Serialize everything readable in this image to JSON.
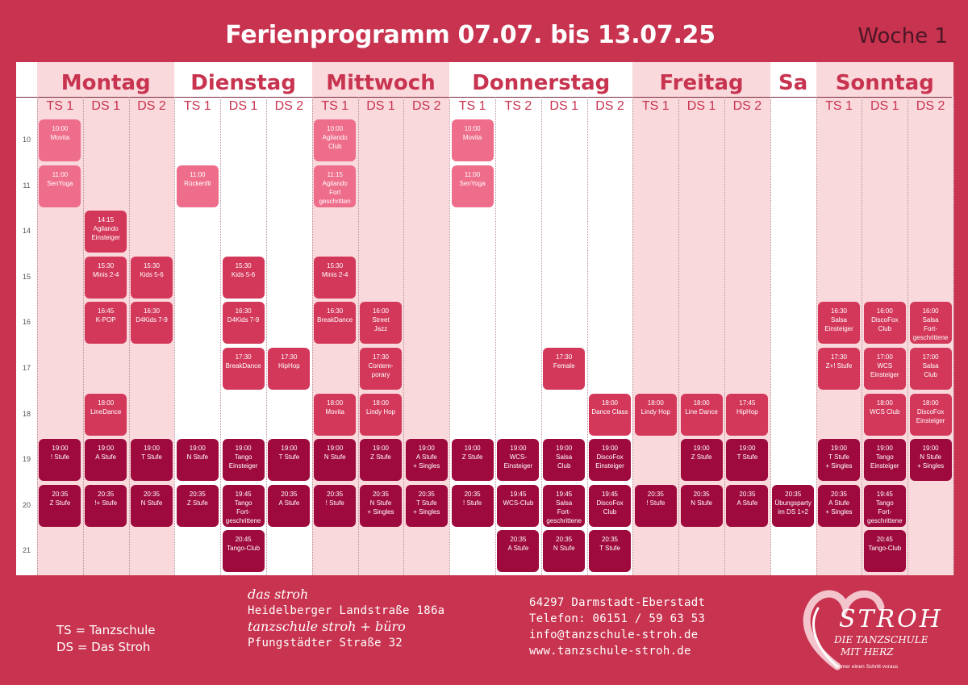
{
  "title": "Ferienprogramm 07.07. bis 13.07.25",
  "week": "Woche 1",
  "days": [
    {
      "name": "Montag",
      "cols": [
        "TS 1",
        "DS 1",
        "DS 2"
      ],
      "shade": true
    },
    {
      "name": "Dienstag",
      "cols": [
        "TS 1",
        "DS 1",
        "DS 2"
      ],
      "shade": false
    },
    {
      "name": "Mittwoch",
      "cols": [
        "TS 1",
        "DS 1",
        "DS 2"
      ],
      "shade": true
    },
    {
      "name": "Donnerstag",
      "cols": [
        "TS 1",
        "TS 2",
        "DS 1",
        "DS 2"
      ],
      "shade": false
    },
    {
      "name": "Freitag",
      "cols": [
        "TS 1",
        "DS 1",
        "DS 2"
      ],
      "shade": true
    },
    {
      "name": "Sa",
      "cols": [
        ""
      ],
      "shade": false
    },
    {
      "name": "Sonntag",
      "cols": [
        "TS 1",
        "DS 1",
        "DS 2"
      ],
      "shade": true
    }
  ],
  "hours": [
    "10",
    "11",
    "14",
    "15",
    "16",
    "17",
    "18",
    "19",
    "20",
    "21"
  ],
  "colors": {
    "light": "#ee6d8b",
    "medium": "#d3385a",
    "dark": "#9e0a3d"
  },
  "events": [
    {
      "col": 0,
      "row": 0,
      "lines": [
        "10:00",
        "Movita"
      ],
      "color": "light"
    },
    {
      "col": 0,
      "row": 1,
      "lines": [
        "11:00",
        "SenYoga"
      ],
      "color": "light"
    },
    {
      "col": 0,
      "row": 7,
      "lines": [
        "19:00",
        "! Stufe"
      ],
      "color": "dark"
    },
    {
      "col": 0,
      "row": 8,
      "lines": [
        "20:35",
        "Z Stufe"
      ],
      "color": "dark"
    },
    {
      "col": 1,
      "row": 2,
      "lines": [
        "14:15",
        "Agilando",
        "Einsteiger"
      ],
      "color": "medium"
    },
    {
      "col": 1,
      "row": 3,
      "lines": [
        "15:30",
        "Minis 2-4"
      ],
      "color": "medium"
    },
    {
      "col": 1,
      "row": 4,
      "lines": [
        "16:45",
        "K-POP"
      ],
      "color": "medium"
    },
    {
      "col": 1,
      "row": 6,
      "lines": [
        "18:00",
        "LineDance"
      ],
      "color": "medium"
    },
    {
      "col": 1,
      "row": 7,
      "lines": [
        "19:00",
        "A Stufe"
      ],
      "color": "dark"
    },
    {
      "col": 1,
      "row": 8,
      "lines": [
        "20:35",
        "!+ Stufe"
      ],
      "color": "dark"
    },
    {
      "col": 2,
      "row": 3,
      "lines": [
        "15:30",
        "Kids 5-6"
      ],
      "color": "medium"
    },
    {
      "col": 2,
      "row": 4,
      "lines": [
        "16:30",
        "D4Kids 7-9"
      ],
      "color": "medium"
    },
    {
      "col": 2,
      "row": 7,
      "lines": [
        "19:00",
        "T Stufe"
      ],
      "color": "dark"
    },
    {
      "col": 2,
      "row": 8,
      "lines": [
        "20:35",
        "N Stufe"
      ],
      "color": "dark"
    },
    {
      "col": 3,
      "row": 1,
      "lines": [
        "11:00",
        "Rückenfit"
      ],
      "color": "light"
    },
    {
      "col": 3,
      "row": 7,
      "lines": [
        "19:00",
        "N Stufe"
      ],
      "color": "dark"
    },
    {
      "col": 3,
      "row": 8,
      "lines": [
        "20:35",
        "Z Stufe"
      ],
      "color": "dark"
    },
    {
      "col": 4,
      "row": 3,
      "lines": [
        "15:30",
        "Kids 5-6"
      ],
      "color": "medium"
    },
    {
      "col": 4,
      "row": 4,
      "lines": [
        "16:30",
        "D4Kids 7-9"
      ],
      "color": "medium"
    },
    {
      "col": 4,
      "row": 5,
      "lines": [
        "17:30",
        "BreakDance"
      ],
      "color": "medium"
    },
    {
      "col": 4,
      "row": 7,
      "lines": [
        "19:00",
        "Tango",
        "Einsteiger"
      ],
      "color": "dark"
    },
    {
      "col": 4,
      "row": 8,
      "lines": [
        "19:45",
        "Tango",
        "Fort-",
        "geschrittene"
      ],
      "color": "dark"
    },
    {
      "col": 4,
      "row": 9,
      "lines": [
        "20:45",
        "Tango-Club"
      ],
      "color": "dark"
    },
    {
      "col": 5,
      "row": 5,
      "lines": [
        "17:30",
        "HipHop"
      ],
      "color": "medium"
    },
    {
      "col": 5,
      "row": 7,
      "lines": [
        "19:00",
        "T Stufe"
      ],
      "color": "dark"
    },
    {
      "col": 5,
      "row": 8,
      "lines": [
        "20:35",
        "A Stufe"
      ],
      "color": "dark"
    },
    {
      "col": 6,
      "row": 0,
      "lines": [
        "10:00",
        "Agilando",
        "Club"
      ],
      "color": "light"
    },
    {
      "col": 6,
      "row": 1,
      "lines": [
        "11:15",
        "Agilando",
        "Fort",
        "geschritten"
      ],
      "color": "light"
    },
    {
      "col": 6,
      "row": 3,
      "lines": [
        "15:30",
        "Minis 2-4"
      ],
      "color": "medium"
    },
    {
      "col": 6,
      "row": 4,
      "lines": [
        "16:30",
        "BreakDance"
      ],
      "color": "medium"
    },
    {
      "col": 6,
      "row": 6,
      "lines": [
        "18:00",
        "Movita"
      ],
      "color": "medium"
    },
    {
      "col": 6,
      "row": 7,
      "lines": [
        "19:00",
        "N Stufe"
      ],
      "color": "dark"
    },
    {
      "col": 6,
      "row": 8,
      "lines": [
        "20:35",
        "! Stufe"
      ],
      "color": "dark"
    },
    {
      "col": 7,
      "row": 4,
      "lines": [
        "16:00",
        "Street",
        "Jazz"
      ],
      "color": "medium"
    },
    {
      "col": 7,
      "row": 5,
      "lines": [
        "17:30",
        "Contem-",
        "porary"
      ],
      "color": "medium"
    },
    {
      "col": 7,
      "row": 6,
      "lines": [
        "18:00",
        "Lindy Hop"
      ],
      "color": "medium"
    },
    {
      "col": 7,
      "row": 7,
      "lines": [
        "19:00",
        "Z Stufe"
      ],
      "color": "dark"
    },
    {
      "col": 7,
      "row": 8,
      "lines": [
        "20:35",
        "N Stufe",
        "+ Singles"
      ],
      "color": "dark"
    },
    {
      "col": 8,
      "row": 7,
      "lines": [
        "19:00",
        "A Stufe",
        "+ Singles"
      ],
      "color": "dark"
    },
    {
      "col": 8,
      "row": 8,
      "lines": [
        "20:35",
        "T Stufe",
        "+ Singles"
      ],
      "color": "dark"
    },
    {
      "col": 9,
      "row": 0,
      "lines": [
        "10:00",
        "Movita"
      ],
      "color": "light"
    },
    {
      "col": 9,
      "row": 1,
      "lines": [
        "11:00",
        "SenYoga"
      ],
      "color": "light"
    },
    {
      "col": 9,
      "row": 7,
      "lines": [
        "19:00",
        "Z Stufe"
      ],
      "color": "dark"
    },
    {
      "col": 9,
      "row": 8,
      "lines": [
        "20:35",
        "! Stufe"
      ],
      "color": "dark"
    },
    {
      "col": 10,
      "row": 7,
      "lines": [
        "19:00",
        "WCS-",
        "Einsteiger"
      ],
      "color": "dark"
    },
    {
      "col": 10,
      "row": 8,
      "lines": [
        "19:45",
        "WCS-Club"
      ],
      "color": "dark"
    },
    {
      "col": 10,
      "row": 9,
      "lines": [
        "20:35",
        "A Stufe"
      ],
      "color": "dark"
    },
    {
      "col": 11,
      "row": 5,
      "lines": [
        "17:30",
        "Female"
      ],
      "color": "medium"
    },
    {
      "col": 11,
      "row": 7,
      "lines": [
        "19:00",
        "Salsa",
        "Club"
      ],
      "color": "dark"
    },
    {
      "col": 11,
      "row": 8,
      "lines": [
        "19:45",
        "Salsa",
        "Fort-",
        "geschrittene"
      ],
      "color": "dark"
    },
    {
      "col": 11,
      "row": 9,
      "lines": [
        "20:35",
        "N Stufe"
      ],
      "color": "dark"
    },
    {
      "col": 12,
      "row": 6,
      "lines": [
        "18:00",
        "Dance Class"
      ],
      "color": "medium"
    },
    {
      "col": 12,
      "row": 7,
      "lines": [
        "19:00",
        "DiscoFox",
        "Einsteiger"
      ],
      "color": "dark"
    },
    {
      "col": 12,
      "row": 8,
      "lines": [
        "19:45",
        "DiscoFox",
        "Club"
      ],
      "color": "dark"
    },
    {
      "col": 12,
      "row": 9,
      "lines": [
        "20:35",
        "T Stufe"
      ],
      "color": "dark"
    },
    {
      "col": 13,
      "row": 6,
      "lines": [
        "18:00",
        "Lindy Hop"
      ],
      "color": "medium"
    },
    {
      "col": 13,
      "row": 8,
      "lines": [
        "20:35",
        "! Stufe"
      ],
      "color": "dark"
    },
    {
      "col": 14,
      "row": 6,
      "lines": [
        "18:00",
        "Line Dance"
      ],
      "color": "medium"
    },
    {
      "col": 14,
      "row": 7,
      "lines": [
        "19:00",
        "Z Stufe"
      ],
      "color": "dark"
    },
    {
      "col": 14,
      "row": 8,
      "lines": [
        "20:35",
        "N Stufe"
      ],
      "color": "dark"
    },
    {
      "col": 15,
      "row": 6,
      "lines": [
        "17:45",
        "HipHop"
      ],
      "color": "medium"
    },
    {
      "col": 15,
      "row": 7,
      "lines": [
        "19:00",
        "T Stufe"
      ],
      "color": "dark"
    },
    {
      "col": 15,
      "row": 8,
      "lines": [
        "20:35",
        "A Stufe"
      ],
      "color": "dark"
    },
    {
      "col": 16,
      "row": 8,
      "lines": [
        "20:35",
        "Übungsparty",
        "im DS 1+2"
      ],
      "color": "dark"
    },
    {
      "col": 17,
      "row": 4,
      "lines": [
        "16:30",
        "Salsa",
        "Einsteiger"
      ],
      "color": "medium"
    },
    {
      "col": 17,
      "row": 5,
      "lines": [
        "17:30",
        "Z+! Stufe"
      ],
      "color": "medium"
    },
    {
      "col": 17,
      "row": 7,
      "lines": [
        "19:00",
        "T Stufe",
        "+ Singles"
      ],
      "color": "dark"
    },
    {
      "col": 17,
      "row": 8,
      "lines": [
        "20:35",
        "A Stufe",
        "+ Singles"
      ],
      "color": "dark"
    },
    {
      "col": 18,
      "row": 4,
      "lines": [
        "16:00",
        "DiscoFox",
        "Club"
      ],
      "color": "medium"
    },
    {
      "col": 18,
      "row": 5,
      "lines": [
        "17:00",
        "WCS",
        "Einsteiger"
      ],
      "color": "medium"
    },
    {
      "col": 18,
      "row": 6,
      "lines": [
        "18:00",
        "WCS Club"
      ],
      "color": "medium"
    },
    {
      "col": 18,
      "row": 7,
      "lines": [
        "19:00",
        "Tango",
        "Einsteiger"
      ],
      "color": "dark"
    },
    {
      "col": 18,
      "row": 8,
      "lines": [
        "19:45",
        "Tango",
        "Fort-",
        "geschrittene"
      ],
      "color": "dark"
    },
    {
      "col": 18,
      "row": 9,
      "lines": [
        "20:45",
        "Tango-Club"
      ],
      "color": "dark"
    },
    {
      "col": 19,
      "row": 4,
      "lines": [
        "16:00",
        "Salsa",
        "Fort-",
        "geschrittene"
      ],
      "color": "medium"
    },
    {
      "col": 19,
      "row": 5,
      "lines": [
        "17:00",
        "Salsa",
        "Club"
      ],
      "color": "medium"
    },
    {
      "col": 19,
      "row": 6,
      "lines": [
        "18:00",
        "DiscoFox",
        "Einsteiger"
      ],
      "color": "medium"
    },
    {
      "col": 19,
      "row": 7,
      "lines": [
        "19:00",
        "N Stufe",
        "+ Singles"
      ],
      "color": "dark"
    }
  ],
  "legend": {
    "ts": "TS = Tanzschule",
    "ds": "DS = Das Stroh"
  },
  "address": {
    "venue1": "das stroh",
    "street1": "Heidelberger Landstraße 186a",
    "venue2": "tanzschule stroh + büro",
    "street2": "Pfungstädter Straße 32"
  },
  "contact": {
    "city": "64297 Darmstadt-Eberstadt",
    "phone": "Telefon: 06151 / 59 63 53",
    "email": "info@tanzschule-stroh.de",
    "web": "www.tanzschule-stroh.de"
  },
  "logo": {
    "brand": "STROH",
    "line1": "DIE TANZSCHULE",
    "line2": "MIT HERZ",
    "tagline": "immer einen Schritt voraus"
  }
}
